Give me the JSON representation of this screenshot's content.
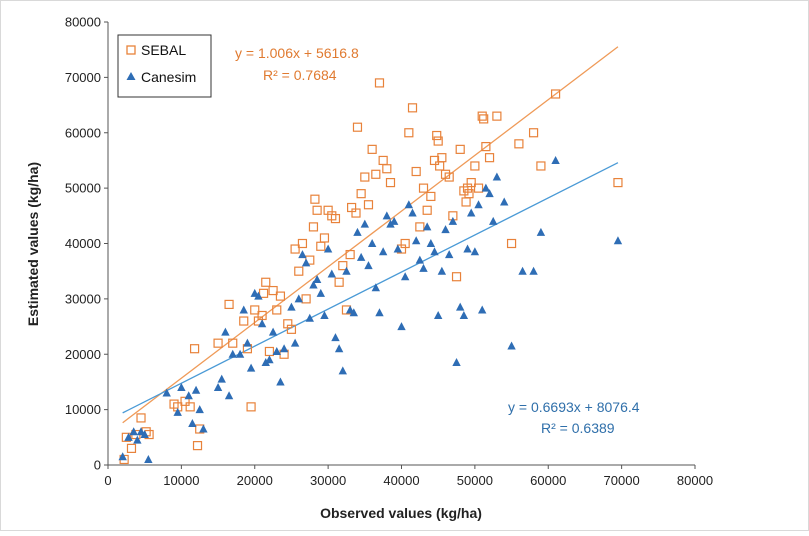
{
  "chart_data": {
    "type": "scatter",
    "xlabel": "Observed values (kg/ha)",
    "ylabel": "Estimated values (kg/ha)",
    "xlim": [
      0,
      80000
    ],
    "ylim": [
      0,
      80000
    ],
    "xticks": [
      "0",
      "10000",
      "20000",
      "30000",
      "40000",
      "50000",
      "60000",
      "70000",
      "80000"
    ],
    "yticks": [
      "0",
      "10000",
      "20000",
      "30000",
      "40000",
      "50000",
      "60000",
      "70000",
      "80000"
    ],
    "grid": false,
    "legend_position": "top-left",
    "colors": {
      "SEBAL": "#e8823a",
      "Canesim": "#2e6db5",
      "SEBAL_line": "#ef9a58",
      "Canesim_line": "#4a9ad6"
    },
    "series": [
      {
        "name": "SEBAL",
        "marker": "open-square",
        "points": [
          [
            2500,
            5000
          ],
          [
            2200,
            1000
          ],
          [
            3200,
            3000
          ],
          [
            3800,
            5500
          ],
          [
            4500,
            8500
          ],
          [
            5200,
            6000
          ],
          [
            5600,
            5500
          ],
          [
            9000,
            11000
          ],
          [
            9500,
            10500
          ],
          [
            10500,
            11500
          ],
          [
            11200,
            10500
          ],
          [
            11800,
            21000
          ],
          [
            12500,
            6500
          ],
          [
            12200,
            3500
          ],
          [
            15000,
            22000
          ],
          [
            16500,
            29000
          ],
          [
            17000,
            22000
          ],
          [
            18500,
            26000
          ],
          [
            19000,
            21000
          ],
          [
            19500,
            10500
          ],
          [
            20000,
            28000
          ],
          [
            20500,
            26000
          ],
          [
            21000,
            27000
          ],
          [
            21200,
            31000
          ],
          [
            21500,
            33000
          ],
          [
            22000,
            20500
          ],
          [
            22500,
            31500
          ],
          [
            23000,
            28000
          ],
          [
            23500,
            30500
          ],
          [
            24000,
            20000
          ],
          [
            24500,
            25500
          ],
          [
            25000,
            24500
          ],
          [
            25500,
            39000
          ],
          [
            26000,
            35000
          ],
          [
            26500,
            40000
          ],
          [
            27000,
            30000
          ],
          [
            27500,
            37000
          ],
          [
            28000,
            43000
          ],
          [
            28200,
            48000
          ],
          [
            28500,
            46000
          ],
          [
            29000,
            39500
          ],
          [
            29500,
            41000
          ],
          [
            30000,
            46000
          ],
          [
            30500,
            45000
          ],
          [
            31000,
            44500
          ],
          [
            31500,
            33000
          ],
          [
            32000,
            36000
          ],
          [
            32500,
            28000
          ],
          [
            33000,
            38000
          ],
          [
            33200,
            46500
          ],
          [
            33800,
            45500
          ],
          [
            34000,
            61000
          ],
          [
            34500,
            49000
          ],
          [
            35000,
            52000
          ],
          [
            35500,
            47000
          ],
          [
            36000,
            57000
          ],
          [
            36500,
            52500
          ],
          [
            37000,
            69000
          ],
          [
            37500,
            55000
          ],
          [
            38000,
            53500
          ],
          [
            38500,
            51000
          ],
          [
            40000,
            39000
          ],
          [
            40500,
            40000
          ],
          [
            41000,
            60000
          ],
          [
            41500,
            64500
          ],
          [
            42000,
            53000
          ],
          [
            42500,
            43000
          ],
          [
            43000,
            50000
          ],
          [
            43500,
            46000
          ],
          [
            44000,
            48500
          ],
          [
            44500,
            55000
          ],
          [
            44800,
            59500
          ],
          [
            45000,
            58500
          ],
          [
            45200,
            54000
          ],
          [
            45500,
            55500
          ],
          [
            46000,
            52500
          ],
          [
            46500,
            52000
          ],
          [
            47000,
            45000
          ],
          [
            47500,
            34000
          ],
          [
            48000,
            57000
          ],
          [
            48500,
            49500
          ],
          [
            48800,
            47500
          ],
          [
            49000,
            50000
          ],
          [
            49200,
            49000
          ],
          [
            49500,
            51000
          ],
          [
            50000,
            54000
          ],
          [
            50500,
            50000
          ],
          [
            51000,
            63000
          ],
          [
            51200,
            62500
          ],
          [
            51500,
            57500
          ],
          [
            52000,
            55500
          ],
          [
            53000,
            63000
          ],
          [
            55000,
            40000
          ],
          [
            56000,
            58000
          ],
          [
            58000,
            60000
          ],
          [
            59000,
            54000
          ],
          [
            61000,
            67000
          ],
          [
            69500,
            51000
          ]
        ]
      },
      {
        "name": "Canesim",
        "marker": "filled-triangle",
        "points": [
          [
            2000,
            1500
          ],
          [
            2800,
            5000
          ],
          [
            3500,
            6000
          ],
          [
            4000,
            4500
          ],
          [
            4500,
            6000
          ],
          [
            5000,
            5500
          ],
          [
            5500,
            1000
          ],
          [
            8000,
            13000
          ],
          [
            9500,
            9500
          ],
          [
            10000,
            14000
          ],
          [
            11000,
            12500
          ],
          [
            11500,
            7500
          ],
          [
            12000,
            13500
          ],
          [
            12500,
            10000
          ],
          [
            13000,
            6500
          ],
          [
            15000,
            14000
          ],
          [
            15500,
            15500
          ],
          [
            16000,
            24000
          ],
          [
            16500,
            12500
          ],
          [
            17000,
            20000
          ],
          [
            18000,
            20000
          ],
          [
            18500,
            28000
          ],
          [
            19000,
            22000
          ],
          [
            19500,
            17500
          ],
          [
            20000,
            31000
          ],
          [
            20500,
            30500
          ],
          [
            21000,
            25500
          ],
          [
            21500,
            18500
          ],
          [
            22000,
            19000
          ],
          [
            22500,
            24000
          ],
          [
            23000,
            20500
          ],
          [
            23500,
            15000
          ],
          [
            24000,
            21000
          ],
          [
            25000,
            28500
          ],
          [
            25500,
            22000
          ],
          [
            26000,
            30000
          ],
          [
            26500,
            38000
          ],
          [
            27000,
            36500
          ],
          [
            27500,
            26500
          ],
          [
            28000,
            32500
          ],
          [
            28500,
            33500
          ],
          [
            29000,
            31000
          ],
          [
            29500,
            27000
          ],
          [
            30000,
            39000
          ],
          [
            30500,
            34500
          ],
          [
            31000,
            23000
          ],
          [
            31500,
            21000
          ],
          [
            32000,
            17000
          ],
          [
            32500,
            35000
          ],
          [
            33000,
            28000
          ],
          [
            33500,
            27500
          ],
          [
            34000,
            42000
          ],
          [
            34500,
            37500
          ],
          [
            35000,
            43500
          ],
          [
            35500,
            36000
          ],
          [
            36000,
            40000
          ],
          [
            36500,
            32000
          ],
          [
            37000,
            27500
          ],
          [
            37500,
            38500
          ],
          [
            38000,
            45000
          ],
          [
            38500,
            43500
          ],
          [
            39000,
            44000
          ],
          [
            39500,
            39000
          ],
          [
            40000,
            25000
          ],
          [
            40500,
            34000
          ],
          [
            41000,
            47000
          ],
          [
            41500,
            45500
          ],
          [
            42000,
            40500
          ],
          [
            42500,
            37000
          ],
          [
            43000,
            35500
          ],
          [
            43500,
            43000
          ],
          [
            44000,
            40000
          ],
          [
            44500,
            38500
          ],
          [
            45000,
            27000
          ],
          [
            45500,
            35000
          ],
          [
            46000,
            42500
          ],
          [
            46500,
            38000
          ],
          [
            47000,
            44000
          ],
          [
            47500,
            18500
          ],
          [
            48000,
            28500
          ],
          [
            48500,
            27000
          ],
          [
            49000,
            39000
          ],
          [
            49500,
            45500
          ],
          [
            50000,
            38500
          ],
          [
            50500,
            47000
          ],
          [
            51000,
            28000
          ],
          [
            51500,
            50000
          ],
          [
            52000,
            49000
          ],
          [
            52500,
            44000
          ],
          [
            53000,
            52000
          ],
          [
            54000,
            47500
          ],
          [
            55000,
            21500
          ],
          [
            56500,
            35000
          ],
          [
            58000,
            35000
          ],
          [
            59000,
            42000
          ],
          [
            61000,
            55000
          ],
          [
            69500,
            40500
          ]
        ]
      }
    ],
    "trendlines": [
      {
        "series": "SEBAL",
        "slope": 1.006,
        "intercept": 5616.8,
        "x_range": [
          2000,
          69500
        ],
        "equation": "y = 1.006x + 5616.8",
        "r2": "R² = 0.7684"
      },
      {
        "series": "Canesim",
        "slope": 0.6693,
        "intercept": 8076.4,
        "x_range": [
          2000,
          69500
        ],
        "equation": "y = 0.6693x + 8076.4",
        "r2": "R² = 0.6389"
      }
    ]
  }
}
